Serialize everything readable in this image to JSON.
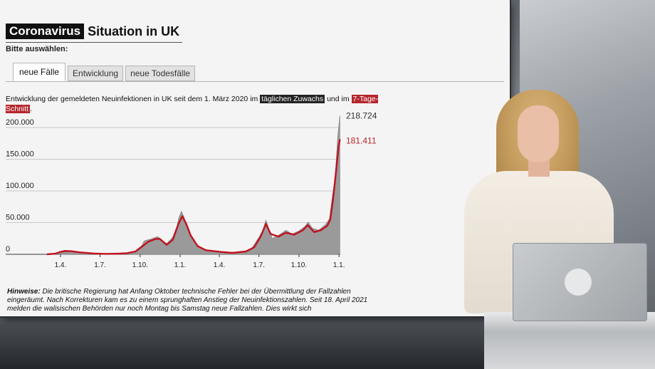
{
  "title": {
    "highlight": "Coronavirus",
    "rest": "Situation in UK"
  },
  "select_label": "Bitte auswählen:",
  "tabs": [
    {
      "label": "neue Fälle",
      "active": true
    },
    {
      "label": "Entwicklung",
      "active": false
    },
    {
      "label": "neue Todesfälle",
      "active": false
    }
  ],
  "description": {
    "before": "Entwicklung der gemeldeten Neuinfektionen in UK seit dem 1. März 2020 im ",
    "daily_label": "täglichen Zuwachs",
    "middle": " und im ",
    "avg_label": "7-Tage-Schnitt",
    "after": "."
  },
  "notes": {
    "label": "Hinweise:",
    "text": " Die britische Regierung hat Anfang Oktober technische Fehler bei der Übermittlung der Fallzahlen eingeräumt. Nach Korrekturen kam es zu einem sprunghaften Anstieg der Neuinfektionszahlen. Seit 18. April 2021 melden die walisischen Behörden nur noch Montag bis Samstag neue Fallzahlen. Dies wirkt sich"
  },
  "colors": {
    "daily_fill": "#9a9a9a",
    "avg_line": "#c1121f",
    "accent_red": "#b5262c"
  },
  "chart_data": {
    "type": "area",
    "x_start": "2020-03-01",
    "x_end": "2022-01-04",
    "ylim": [
      0,
      200000
    ],
    "yticks": [
      0,
      50000,
      100000,
      150000,
      200000
    ],
    "ytick_labels": [
      "0",
      "50.000",
      "100.000",
      "150.000",
      "200.000"
    ],
    "xticks": [
      "2020-04-01",
      "2020-07-01",
      "2020-10-01",
      "2021-01-01",
      "2021-04-01",
      "2021-07-01",
      "2021-10-01",
      "2022-01-01"
    ],
    "xtick_labels": [
      "1.4.",
      "1.7.",
      "1.10.",
      "1.1.",
      "1.4.",
      "1.7.",
      "1.10.",
      "1.1."
    ],
    "series": [
      {
        "key": "daily",
        "style": "area",
        "points": [
          [
            "2020-03-01",
            0
          ],
          [
            "2020-03-20",
            1500
          ],
          [
            "2020-04-01",
            4500
          ],
          [
            "2020-04-10",
            6500
          ],
          [
            "2020-04-25",
            5500
          ],
          [
            "2020-05-15",
            3500
          ],
          [
            "2020-06-15",
            1500
          ],
          [
            "2020-07-15",
            800
          ],
          [
            "2020-08-15",
            1200
          ],
          [
            "2020-09-01",
            2000
          ],
          [
            "2020-09-20",
            5000
          ],
          [
            "2020-10-05",
            14000
          ],
          [
            "2020-10-10",
            21000
          ],
          [
            "2020-10-25",
            24000
          ],
          [
            "2020-11-10",
            28000
          ],
          [
            "2020-11-20",
            22000
          ],
          [
            "2020-12-01",
            17000
          ],
          [
            "2020-12-15",
            27000
          ],
          [
            "2020-12-25",
            45000
          ],
          [
            "2020-12-29",
            58000
          ],
          [
            "2021-01-04",
            68000
          ],
          [
            "2021-01-10",
            58000
          ],
          [
            "2021-01-20",
            38000
          ],
          [
            "2021-02-01",
            22000
          ],
          [
            "2021-02-15",
            11000
          ],
          [
            "2021-03-01",
            7000
          ],
          [
            "2021-04-01",
            4500
          ],
          [
            "2021-05-01",
            2500
          ],
          [
            "2021-05-25",
            3500
          ],
          [
            "2021-06-15",
            10000
          ],
          [
            "2021-07-01",
            27000
          ],
          [
            "2021-07-10",
            38000
          ],
          [
            "2021-07-17",
            54000
          ],
          [
            "2021-07-22",
            44000
          ],
          [
            "2021-08-01",
            25000
          ],
          [
            "2021-08-15",
            30000
          ],
          [
            "2021-09-01",
            38000
          ],
          [
            "2021-09-15",
            32000
          ],
          [
            "2021-10-01",
            37000
          ],
          [
            "2021-10-15",
            44000
          ],
          [
            "2021-10-22",
            51000
          ],
          [
            "2021-11-01",
            41000
          ],
          [
            "2021-11-15",
            38000
          ],
          [
            "2021-12-01",
            47000
          ],
          [
            "2021-12-10",
            56000
          ],
          [
            "2021-12-17",
            93000
          ],
          [
            "2021-12-23",
            120000
          ],
          [
            "2021-12-29",
            185000
          ],
          [
            "2022-01-03",
            218724
          ]
        ]
      },
      {
        "key": "avg7",
        "style": "line",
        "points": [
          [
            "2020-03-01",
            0
          ],
          [
            "2020-03-20",
            1000
          ],
          [
            "2020-04-01",
            3800
          ],
          [
            "2020-04-12",
            5200
          ],
          [
            "2020-04-25",
            5000
          ],
          [
            "2020-05-15",
            3200
          ],
          [
            "2020-06-15",
            1300
          ],
          [
            "2020-07-15",
            700
          ],
          [
            "2020-08-15",
            1100
          ],
          [
            "2020-09-01",
            1800
          ],
          [
            "2020-09-20",
            4500
          ],
          [
            "2020-10-05",
            12000
          ],
          [
            "2020-10-20",
            20000
          ],
          [
            "2020-11-05",
            24000
          ],
          [
            "2020-11-15",
            24500
          ],
          [
            "2020-12-01",
            15000
          ],
          [
            "2020-12-15",
            23000
          ],
          [
            "2020-12-28",
            48000
          ],
          [
            "2021-01-06",
            60000
          ],
          [
            "2021-01-15",
            48000
          ],
          [
            "2021-01-25",
            30000
          ],
          [
            "2021-02-10",
            13000
          ],
          [
            "2021-03-01",
            6500
          ],
          [
            "2021-04-01",
            4000
          ],
          [
            "2021-05-01",
            2300
          ],
          [
            "2021-06-01",
            4500
          ],
          [
            "2021-06-20",
            11000
          ],
          [
            "2021-07-05",
            28000
          ],
          [
            "2021-07-17",
            48000
          ],
          [
            "2021-07-28",
            32000
          ],
          [
            "2021-08-15",
            28000
          ],
          [
            "2021-09-01",
            34000
          ],
          [
            "2021-09-20",
            31000
          ],
          [
            "2021-10-10",
            38000
          ],
          [
            "2021-10-21",
            46000
          ],
          [
            "2021-11-05",
            35000
          ],
          [
            "2021-11-20",
            38000
          ],
          [
            "2021-12-05",
            45000
          ],
          [
            "2021-12-12",
            55000
          ],
          [
            "2021-12-18",
            85000
          ],
          [
            "2021-12-25",
            130000
          ],
          [
            "2021-12-31",
            170000
          ],
          [
            "2022-01-03",
            181411
          ]
        ]
      }
    ],
    "end_labels": [
      {
        "key": "daily",
        "text": "218.724"
      },
      {
        "key": "avg7",
        "text": "181.411"
      }
    ]
  }
}
